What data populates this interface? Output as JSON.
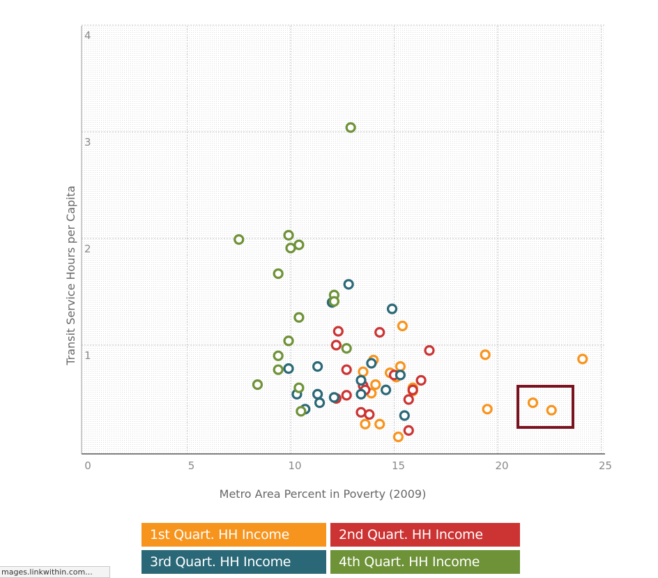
{
  "chart_data": {
    "type": "scatter",
    "xlabel": "Metro Area Percent in Poverty (2009)",
    "ylabel": "Transit Service Hours per Capita",
    "xlim": [
      0,
      25.5
    ],
    "ylim": [
      0,
      4
    ],
    "xticks": [
      {
        "value": 0,
        "label": "0"
      },
      {
        "value": 5,
        "label": "5"
      },
      {
        "value": 10,
        "label": "10"
      },
      {
        "value": 15,
        "label": "15"
      },
      {
        "value": 20,
        "label": "20"
      },
      {
        "value": 25,
        "label": "25"
      }
    ],
    "yticks": [
      {
        "value": 1,
        "label": "1"
      },
      {
        "value": 2,
        "label": "2"
      },
      {
        "value": 3,
        "label": "3"
      },
      {
        "value": 4,
        "label": "4"
      }
    ],
    "grid": true,
    "legend_position": "bottom",
    "series": [
      {
        "name": "1st Quart. HH Income",
        "color": "#f7941d",
        "points": [
          [
            15.4,
            1.18
          ],
          [
            19.4,
            0.91
          ],
          [
            24.1,
            0.87
          ],
          [
            14.0,
            0.86
          ],
          [
            13.5,
            0.75
          ],
          [
            14.8,
            0.74
          ],
          [
            15.3,
            0.8
          ],
          [
            15.1,
            0.7
          ],
          [
            14.1,
            0.63
          ],
          [
            15.9,
            0.6
          ],
          [
            15.9,
            0.57
          ],
          [
            13.9,
            0.55
          ],
          [
            19.5,
            0.4
          ],
          [
            21.7,
            0.46
          ],
          [
            22.6,
            0.39
          ],
          [
            13.6,
            0.26
          ],
          [
            14.3,
            0.26
          ],
          [
            15.2,
            0.14
          ]
        ]
      },
      {
        "name": "2nd Quart. HH Income",
        "color": "#cc3333",
        "points": [
          [
            12.3,
            1.13
          ],
          [
            14.3,
            1.12
          ],
          [
            12.2,
            1.0
          ],
          [
            16.7,
            0.95
          ],
          [
            12.7,
            0.77
          ],
          [
            15.0,
            0.72
          ],
          [
            16.3,
            0.67
          ],
          [
            15.9,
            0.58
          ],
          [
            13.5,
            0.62
          ],
          [
            13.6,
            0.58
          ],
          [
            12.7,
            0.53
          ],
          [
            12.2,
            0.5
          ],
          [
            15.7,
            0.49
          ],
          [
            13.4,
            0.37
          ],
          [
            13.8,
            0.35
          ],
          [
            15.7,
            0.2
          ]
        ]
      },
      {
        "name": "3rd Quart. HH Income",
        "color": "#2a6877",
        "points": [
          [
            12.8,
            1.57
          ],
          [
            14.9,
            1.34
          ],
          [
            12.0,
            1.4
          ],
          [
            13.9,
            0.83
          ],
          [
            11.3,
            0.8
          ],
          [
            9.9,
            0.78
          ],
          [
            15.3,
            0.72
          ],
          [
            13.4,
            0.67
          ],
          [
            14.6,
            0.58
          ],
          [
            13.4,
            0.54
          ],
          [
            10.3,
            0.54
          ],
          [
            11.3,
            0.54
          ],
          [
            12.1,
            0.51
          ],
          [
            11.4,
            0.46
          ],
          [
            10.7,
            0.4
          ],
          [
            15.5,
            0.34
          ]
        ]
      },
      {
        "name": "4th Quart. HH Income",
        "color": "#6e9237",
        "points": [
          [
            12.9,
            3.04
          ],
          [
            7.5,
            1.99
          ],
          [
            9.9,
            2.03
          ],
          [
            10.4,
            1.94
          ],
          [
            10.0,
            1.91
          ],
          [
            9.4,
            1.67
          ],
          [
            12.1,
            1.47
          ],
          [
            12.1,
            1.41
          ],
          [
            10.4,
            1.26
          ],
          [
            9.9,
            1.04
          ],
          [
            12.7,
            0.97
          ],
          [
            9.4,
            0.9
          ],
          [
            9.4,
            0.77
          ],
          [
            8.4,
            0.63
          ],
          [
            10.4,
            0.6
          ],
          [
            10.5,
            0.38
          ]
        ]
      }
    ],
    "annotation": "highlight-box"
  },
  "status_bar": {
    "text": "mages.linkwithin.com..."
  }
}
